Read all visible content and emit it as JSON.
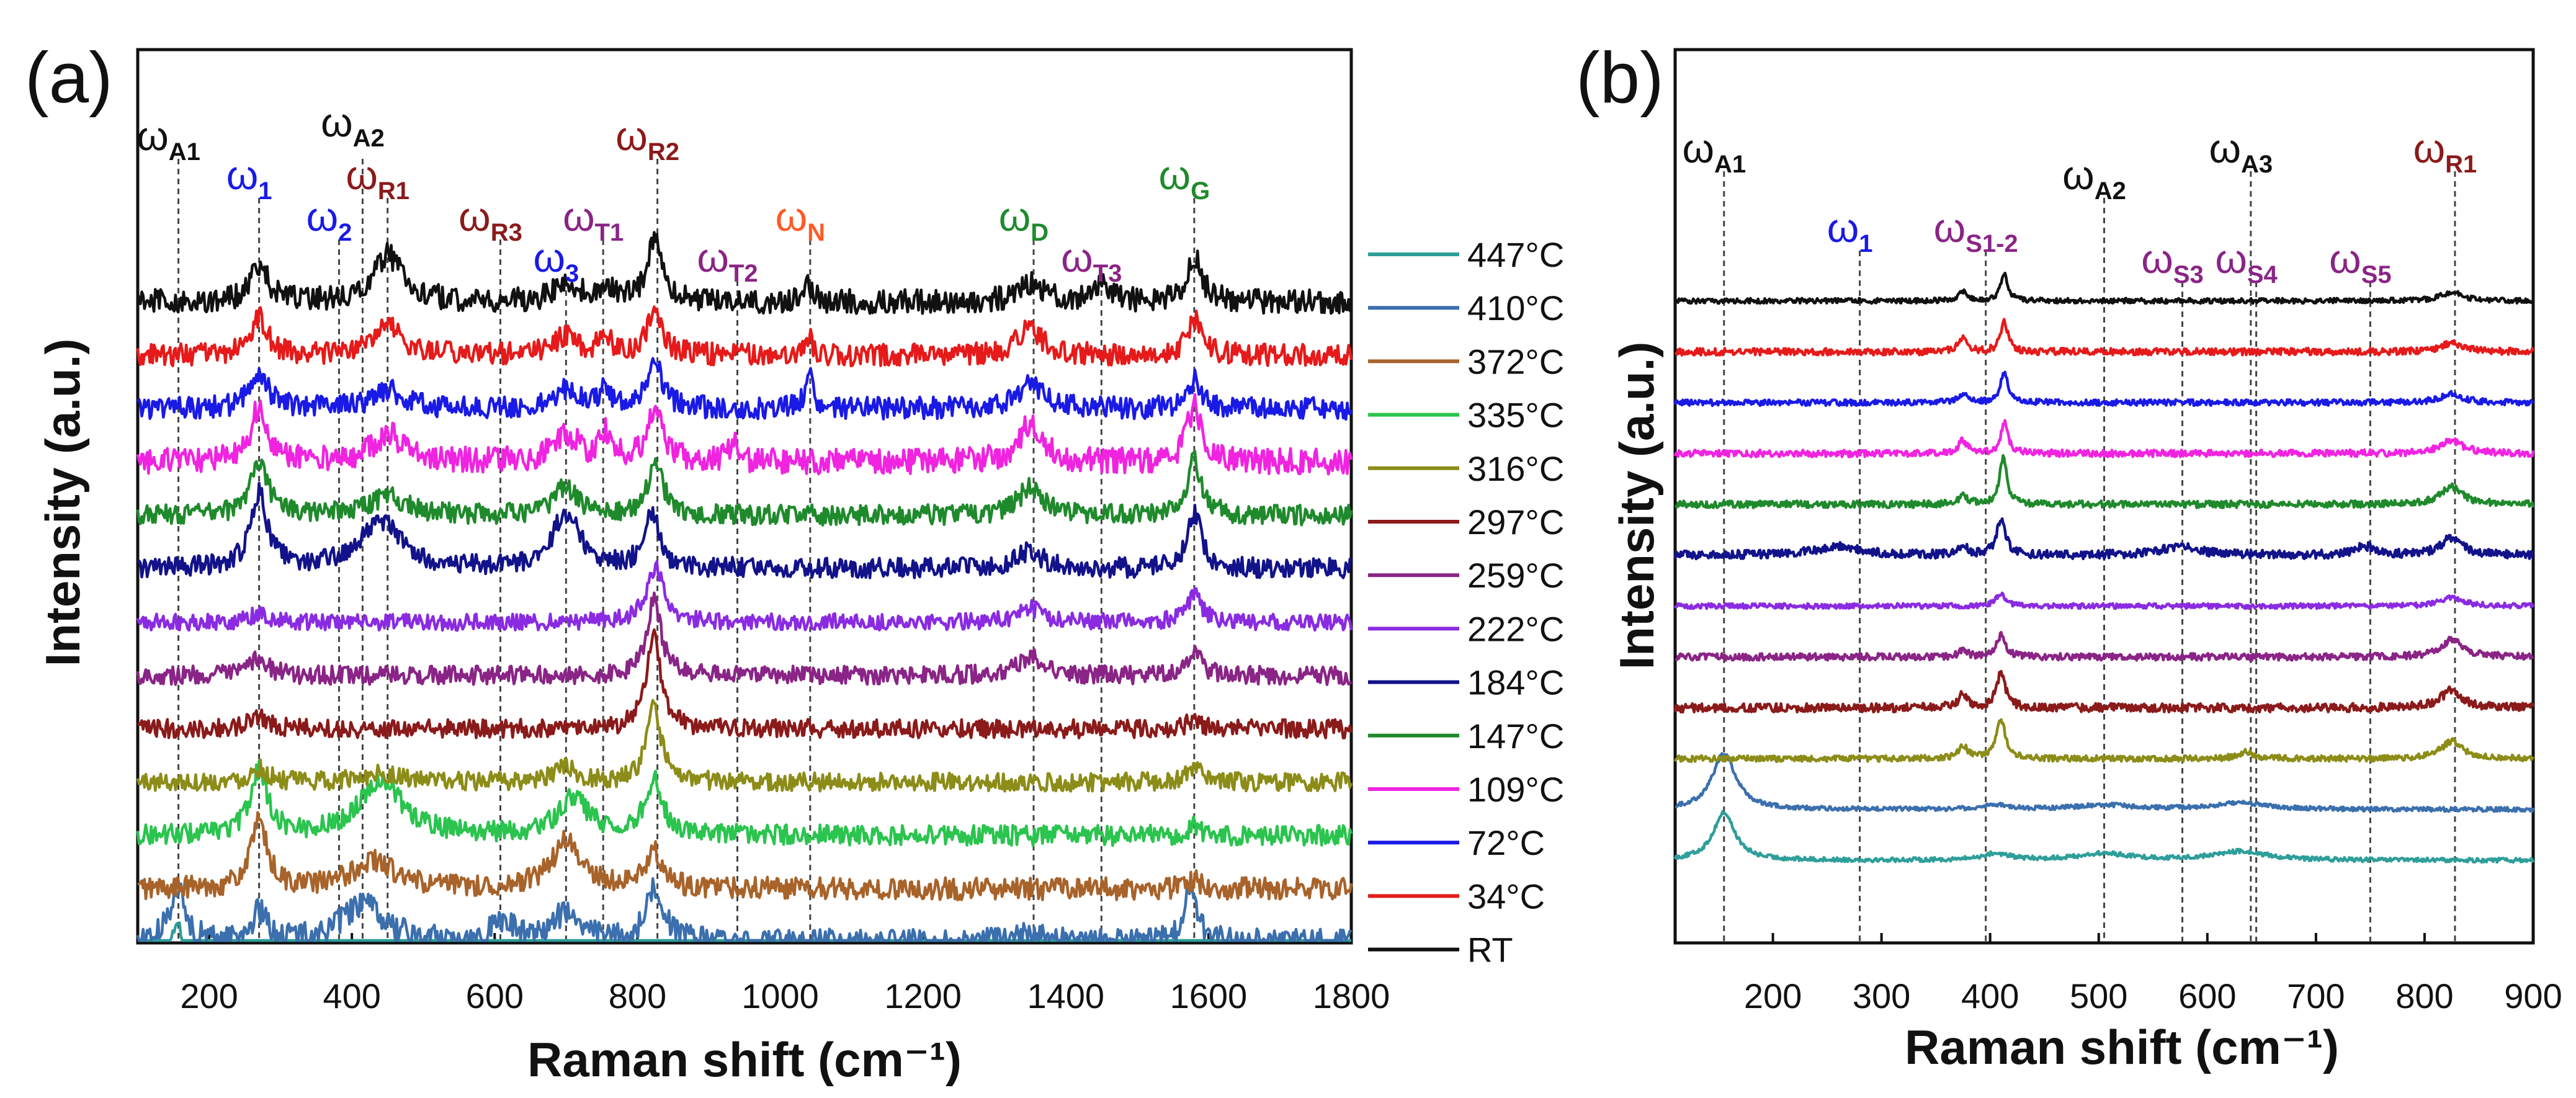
{
  "chart_data": [
    {
      "panel": "(a)",
      "type": "line",
      "xlabel": "Raman shift (cm⁻¹)",
      "ylabel": "Intensity (a.u.)",
      "xlim": [
        100,
        1800
      ],
      "xticks": [
        200,
        400,
        600,
        800,
        1000,
        1200,
        1400,
        1600,
        1800
      ],
      "legend_position": "right",
      "series": [
        {
          "name": "447°C",
          "color": "#2e9e9a",
          "noise": 0.6,
          "peaks": [
            {
              "x": 155,
              "h": 8,
              "w": 12
            },
            {
              "x": 270,
              "h": 1,
              "w": 14
            },
            {
              "x": 400,
              "h": 1.5,
              "w": 30
            },
            {
              "x": 450,
              "h": 1.5,
              "w": 30
            },
            {
              "x": 610,
              "h": 1,
              "w": 20
            },
            {
              "x": 700,
              "h": 1,
              "w": 20
            },
            {
              "x": 823,
              "h": 1.5,
              "w": 14
            }
          ]
        },
        {
          "name": "410°C",
          "color": "#3b6fae",
          "noise": 1.4,
          "peaks": [
            {
              "x": 155,
              "h": 6,
              "w": 12
            },
            {
              "x": 270,
              "h": 3,
              "w": 14
            },
            {
              "x": 415,
              "h": 4,
              "w": 35
            },
            {
              "x": 610,
              "h": 2,
              "w": 20
            },
            {
              "x": 700,
              "h": 3,
              "w": 25
            },
            {
              "x": 825,
              "h": 6,
              "w": 14
            },
            {
              "x": 1350,
              "h": 1,
              "w": 25
            },
            {
              "x": 1575,
              "h": 6,
              "w": 10
            }
          ]
        },
        {
          "name": "372°C",
          "color": "#a8632a",
          "noise": 1.2,
          "peaks": [
            {
              "x": 270,
              "h": 7,
              "w": 14
            },
            {
              "x": 430,
              "h": 3,
              "w": 35
            },
            {
              "x": 700,
              "h": 5,
              "w": 25
            },
            {
              "x": 822,
              "h": 4,
              "w": 14
            },
            {
              "x": 1580,
              "h": 1,
              "w": 12
            }
          ]
        },
        {
          "name": "335°C",
          "color": "#2ac44e",
          "noise": 1.1,
          "peaks": [
            {
              "x": 270,
              "h": 7,
              "w": 14
            },
            {
              "x": 440,
              "h": 6,
              "w": 35
            },
            {
              "x": 710,
              "h": 4,
              "w": 25
            },
            {
              "x": 823,
              "h": 6,
              "w": 14
            },
            {
              "x": 1580,
              "h": 1,
              "w": 12
            }
          ]
        },
        {
          "name": "316°C",
          "color": "#8c8c18",
          "noise": 1.0,
          "peaks": [
            {
              "x": 270,
              "h": 1.5,
              "w": 14
            },
            {
              "x": 440,
              "h": 1,
              "w": 30
            },
            {
              "x": 700,
              "h": 1.5,
              "w": 20
            },
            {
              "x": 823,
              "h": 8,
              "w": 12
            },
            {
              "x": 1580,
              "h": 1.5,
              "w": 12
            }
          ]
        },
        {
          "name": "297°C",
          "color": "#8b1a1a",
          "noise": 1.0,
          "peaks": [
            {
              "x": 270,
              "h": 1.5,
              "w": 14
            },
            {
              "x": 823,
              "h": 10,
              "w": 12
            },
            {
              "x": 1580,
              "h": 1,
              "w": 12
            }
          ]
        },
        {
          "name": "259°C",
          "color": "#8a2486",
          "noise": 1.0,
          "peaks": [
            {
              "x": 270,
              "h": 2,
              "w": 14
            },
            {
              "x": 823,
              "h": 8,
              "w": 12
            },
            {
              "x": 1350,
              "h": 2,
              "w": 20
            },
            {
              "x": 1580,
              "h": 2.5,
              "w": 12
            }
          ]
        },
        {
          "name": "222°C",
          "color": "#8a2be2",
          "noise": 0.9,
          "peaks": [
            {
              "x": 270,
              "h": 1,
              "w": 14
            },
            {
              "x": 825,
              "h": 6,
              "w": 14
            },
            {
              "x": 1350,
              "h": 1.5,
              "w": 20
            },
            {
              "x": 1580,
              "h": 3,
              "w": 12
            }
          ]
        },
        {
          "name": "184°C",
          "color": "#12128a",
          "noise": 1.1,
          "peaks": [
            {
              "x": 270,
              "h": 8,
              "w": 14
            },
            {
              "x": 440,
              "h": 5,
              "w": 35
            },
            {
              "x": 700,
              "h": 6,
              "w": 22
            },
            {
              "x": 820,
              "h": 6,
              "w": 12
            },
            {
              "x": 1350,
              "h": 2,
              "w": 20
            },
            {
              "x": 1580,
              "h": 6,
              "w": 12
            }
          ]
        },
        {
          "name": "147°C",
          "color": "#1f8a2c",
          "noise": 1.1,
          "peaks": [
            {
              "x": 270,
              "h": 6,
              "w": 14
            },
            {
              "x": 450,
              "h": 2,
              "w": 30
            },
            {
              "x": 700,
              "h": 3,
              "w": 20
            },
            {
              "x": 825,
              "h": 6,
              "w": 12
            },
            {
              "x": 1350,
              "h": 3,
              "w": 20
            },
            {
              "x": 1580,
              "h": 6,
              "w": 12
            }
          ]
        },
        {
          "name": "109°C",
          "color": "#f024e0",
          "noise": 1.4,
          "peaks": [
            {
              "x": 270,
              "h": 6,
              "w": 14
            },
            {
              "x": 450,
              "h": 3,
              "w": 25
            },
            {
              "x": 700,
              "h": 3,
              "w": 20
            },
            {
              "x": 755,
              "h": 3,
              "w": 10
            },
            {
              "x": 825,
              "h": 6,
              "w": 12
            },
            {
              "x": 935,
              "h": 2,
              "w": 8
            },
            {
              "x": 1350,
              "h": 4,
              "w": 20
            },
            {
              "x": 1580,
              "h": 6,
              "w": 12
            }
          ]
        },
        {
          "name": "72°C",
          "color": "#1a1ae6",
          "noise": 1.2,
          "peaks": [
            {
              "x": 270,
              "h": 4,
              "w": 14
            },
            {
              "x": 450,
              "h": 2,
              "w": 25
            },
            {
              "x": 700,
              "h": 2,
              "w": 20
            },
            {
              "x": 755,
              "h": 2,
              "w": 10
            },
            {
              "x": 825,
              "h": 5,
              "w": 12
            },
            {
              "x": 1040,
              "h": 4,
              "w": 6
            },
            {
              "x": 1350,
              "h": 3,
              "w": 20
            },
            {
              "x": 1580,
              "h": 3,
              "w": 12
            }
          ]
        },
        {
          "name": "34°C",
          "color": "#e61a1a",
          "noise": 1.2,
          "peaks": [
            {
              "x": 270,
              "h": 4,
              "w": 14
            },
            {
              "x": 450,
              "h": 3,
              "w": 25
            },
            {
              "x": 700,
              "h": 2,
              "w": 20
            },
            {
              "x": 755,
              "h": 2,
              "w": 10
            },
            {
              "x": 825,
              "h": 5,
              "w": 12
            },
            {
              "x": 1040,
              "h": 2,
              "w": 6
            },
            {
              "x": 1350,
              "h": 3,
              "w": 20
            },
            {
              "x": 1580,
              "h": 4,
              "w": 12
            }
          ]
        },
        {
          "name": "RT",
          "color": "#111111",
          "noise": 1.3,
          "peaks": [
            {
              "x": 270,
              "h": 4,
              "w": 14
            },
            {
              "x": 450,
              "h": 5,
              "w": 25
            },
            {
              "x": 700,
              "h": 2,
              "w": 20
            },
            {
              "x": 755,
              "h": 2,
              "w": 10
            },
            {
              "x": 825,
              "h": 7,
              "w": 12
            },
            {
              "x": 1040,
              "h": 2,
              "w": 6
            },
            {
              "x": 1350,
              "h": 2,
              "w": 20
            },
            {
              "x": 1450,
              "h": 2,
              "w": 15
            },
            {
              "x": 1580,
              "h": 5,
              "w": 12
            }
          ]
        }
      ],
      "peak_labels": [
        {
          "symbol": "ω",
          "sub": "A1",
          "x": 157,
          "color": "#111111",
          "row": 0
        },
        {
          "symbol": "ω",
          "sub": "A2",
          "x": 415,
          "color": "#111111",
          "row": -1
        },
        {
          "symbol": "ω",
          "sub": "R2",
          "x": 828,
          "color": "#8b1a1a",
          "row": 0
        },
        {
          "symbol": "ω",
          "sub": "1",
          "x": 270,
          "color": "#1a1ae6",
          "row": 1
        },
        {
          "symbol": "ω",
          "sub": "R1",
          "x": 450,
          "color": "#8b1a1a",
          "row": 1
        },
        {
          "symbol": "ω",
          "sub": "G",
          "x": 1580,
          "color": "#1f8a2c",
          "row": 1
        },
        {
          "symbol": "ω",
          "sub": "2",
          "x": 382,
          "color": "#1a1ae6",
          "row": 2
        },
        {
          "symbol": "ω",
          "sub": "R3",
          "x": 608,
          "color": "#8b1a1a",
          "row": 2
        },
        {
          "symbol": "ω",
          "sub": "T1",
          "x": 752,
          "color": "#8a2486",
          "row": 2
        },
        {
          "symbol": "ω",
          "sub": "N",
          "x": 1042,
          "color": "#ff5a26",
          "row": 2
        },
        {
          "symbol": "ω",
          "sub": "D",
          "x": 1355,
          "color": "#1f8a2c",
          "row": 2
        },
        {
          "symbol": "ω",
          "sub": "3",
          "x": 700,
          "color": "#1a1ae6",
          "row": 3
        },
        {
          "symbol": "ω",
          "sub": "T2",
          "x": 940,
          "color": "#8a2486",
          "row": 3
        },
        {
          "symbol": "ω",
          "sub": "T3",
          "x": 1450,
          "color": "#8a2486",
          "row": 3
        }
      ]
    },
    {
      "panel": "(b)",
      "type": "line",
      "xlabel": "Raman shift (cm⁻¹)",
      "ylabel": "Intensity (a.u.)",
      "xlim": [
        110,
        900
      ],
      "xticks": [
        200,
        300,
        400,
        500,
        600,
        700,
        800,
        900
      ],
      "series": [
        {
          "color": "#2e9e9a",
          "noise": 0.5,
          "peaks": [
            {
              "x": 155,
              "h": 11,
              "w": 12
            },
            {
              "x": 405,
              "h": 1.5,
              "w": 15
            },
            {
              "x": 505,
              "h": 1.5,
              "w": 30
            },
            {
              "x": 630,
              "h": 2,
              "w": 30
            }
          ]
        },
        {
          "color": "#3b6fae",
          "noise": 0.5,
          "peaks": [
            {
              "x": 155,
              "h": 13,
              "w": 13
            },
            {
              "x": 405,
              "h": 1,
              "w": 15
            },
            {
              "x": 505,
              "h": 1,
              "w": 30
            },
            {
              "x": 630,
              "h": 1.5,
              "w": 30
            }
          ]
        },
        {
          "color": "#8c8c18",
          "noise": 0.7,
          "peaks": [
            {
              "x": 375,
              "h": 3,
              "w": 5
            },
            {
              "x": 410,
              "h": 9,
              "w": 5
            },
            {
              "x": 635,
              "h": 1.5,
              "w": 8
            },
            {
              "x": 825,
              "h": 4,
              "w": 12
            }
          ]
        },
        {
          "color": "#8b1a1a",
          "noise": 1.0,
          "peaks": [
            {
              "x": 375,
              "h": 3,
              "w": 5
            },
            {
              "x": 410,
              "h": 8,
              "w": 5
            },
            {
              "x": 825,
              "h": 4,
              "w": 12
            }
          ]
        },
        {
          "color": "#8a2486",
          "noise": 0.8,
          "peaks": [
            {
              "x": 375,
              "h": 1.5,
              "w": 5
            },
            {
              "x": 410,
              "h": 5,
              "w": 5
            },
            {
              "x": 825,
              "h": 4,
              "w": 12
            }
          ]
        },
        {
          "color": "#8a2be2",
          "noise": 0.6,
          "peaks": [
            {
              "x": 410,
              "h": 3,
              "w": 5
            },
            {
              "x": 825,
              "h": 2,
              "w": 12
            }
          ]
        },
        {
          "color": "#12128a",
          "noise": 1.0,
          "peaks": [
            {
              "x": 260,
              "h": 2,
              "w": 25
            },
            {
              "x": 375,
              "h": 2,
              "w": 5
            },
            {
              "x": 410,
              "h": 8,
              "w": 5
            },
            {
              "x": 575,
              "h": 2,
              "w": 20
            },
            {
              "x": 745,
              "h": 2,
              "w": 10
            },
            {
              "x": 825,
              "h": 4,
              "w": 12
            }
          ]
        },
        {
          "color": "#1f8a2c",
          "noise": 0.8,
          "peaks": [
            {
              "x": 375,
              "h": 2,
              "w": 5
            },
            {
              "x": 412,
              "h": 11,
              "w": 4
            },
            {
              "x": 825,
              "h": 4,
              "w": 12
            }
          ]
        },
        {
          "color": "#f024e0",
          "noise": 0.8,
          "peaks": [
            {
              "x": 375,
              "h": 3,
              "w": 5
            },
            {
              "x": 413,
              "h": 7,
              "w": 4
            },
            {
              "x": 825,
              "h": 3,
              "w": 12
            }
          ]
        },
        {
          "color": "#1a1ae6",
          "noise": 0.7,
          "peaks": [
            {
              "x": 375,
              "h": 2,
              "w": 5
            },
            {
              "x": 413,
              "h": 7,
              "w": 4
            },
            {
              "x": 825,
              "h": 2,
              "w": 12
            }
          ]
        },
        {
          "color": "#e61a1a",
          "noise": 0.8,
          "peaks": [
            {
              "x": 375,
              "h": 3,
              "w": 5
            },
            {
              "x": 413,
              "h": 7,
              "w": 4
            },
            {
              "x": 825,
              "h": 2,
              "w": 12
            }
          ]
        },
        {
          "color": "#111111",
          "noise": 0.6,
          "peaks": [
            {
              "x": 375,
              "h": 2,
              "w": 5
            },
            {
              "x": 413,
              "h": 6,
              "w": 4
            },
            {
              "x": 825,
              "h": 2,
              "w": 12
            }
          ]
        }
      ],
      "peak_labels": [
        {
          "symbol": "ω",
          "sub": "A1",
          "x": 155,
          "color": "#111111",
          "row": 0
        },
        {
          "symbol": "ω",
          "sub": "A3",
          "x": 640,
          "color": "#111111",
          "row": 0
        },
        {
          "symbol": "ω",
          "sub": "R1",
          "x": 828,
          "color": "#8b1a1a",
          "row": 0
        },
        {
          "symbol": "ω",
          "sub": "A2",
          "x": 505,
          "color": "#111111",
          "row": 1
        },
        {
          "symbol": "ω",
          "sub": "1",
          "x": 280,
          "color": "#1a1ae6",
          "row": 2
        },
        {
          "symbol": "ω",
          "sub": "S1-2",
          "x": 396,
          "color": "#8a2486",
          "row": 2
        },
        {
          "symbol": "ω",
          "sub": "S3",
          "x": 577,
          "color": "#8a2486",
          "row": 3
        },
        {
          "symbol": "ω",
          "sub": "S4",
          "x": 645,
          "color": "#8a2486",
          "row": 3
        },
        {
          "symbol": "ω",
          "sub": "S5",
          "x": 750,
          "color": "#8a2486",
          "row": 3
        }
      ]
    }
  ]
}
